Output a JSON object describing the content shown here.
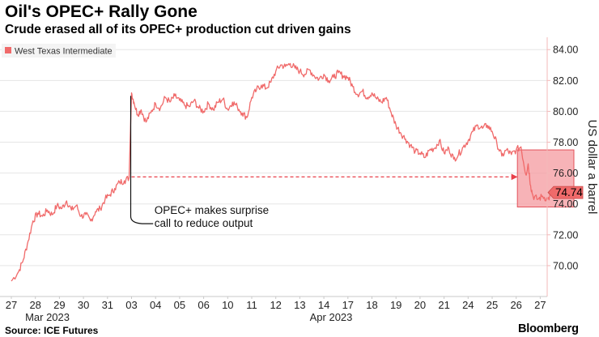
{
  "header": {
    "title": "Oil's OPEC+ Rally Gone",
    "subtitle": "Crude erased all of its OPEC+ production cut driven gains"
  },
  "footer": {
    "source": "Source: ICE Futures",
    "brand": "Bloomberg"
  },
  "colors": {
    "series": "#f06a6a",
    "box_fill": "#f5a0a5",
    "box_stroke": "#e4525b",
    "arrow": "#e8404a",
    "grid": "#e5e5e5",
    "axis": "#f3b9b9"
  },
  "chart_data": {
    "type": "line",
    "title": "Oil's OPEC+ Rally Gone",
    "subtitle": "Crude erased all of its OPEC+ production cut driven gains",
    "ylabel": "US dollar a barrel",
    "ylim": [
      68.0,
      84.8
    ],
    "yticks": [
      "70.00",
      "72.00",
      "74.00",
      "76.00",
      "78.00",
      "80.00",
      "82.00",
      "84.00"
    ],
    "ytick_values": [
      70,
      72,
      74,
      76,
      78,
      80,
      82,
      84
    ],
    "categories": [
      "27",
      "28",
      "29",
      "30",
      "31",
      "03",
      "04",
      "05",
      "06",
      "10",
      "11",
      "12",
      "13",
      "14",
      "17",
      "18",
      "19",
      "20",
      "21",
      "24",
      "25",
      "26",
      "27"
    ],
    "month_labels": [
      {
        "label": "Mar 2023",
        "at_index": 1.5
      },
      {
        "label": "Apr 2023",
        "at_index": 13.3
      }
    ],
    "legend": {
      "position": "top-left",
      "entries": [
        "West Texas Intermediate"
      ]
    },
    "grid": "horizontal",
    "last_value_label": "74.74",
    "series": [
      {
        "name": "West Texas Intermediate",
        "points": [
          [
            0.0,
            69.0
          ],
          [
            0.3,
            69.6
          ],
          [
            0.5,
            70.4
          ],
          [
            0.7,
            71.6
          ],
          [
            0.9,
            72.9
          ],
          [
            1.1,
            73.4
          ],
          [
            1.3,
            73.2
          ],
          [
            1.5,
            73.6
          ],
          [
            1.7,
            73.3
          ],
          [
            1.9,
            73.9
          ],
          [
            2.1,
            73.7
          ],
          [
            2.3,
            74.2
          ],
          [
            2.5,
            73.6
          ],
          [
            2.7,
            73.9
          ],
          [
            2.9,
            73.2
          ],
          [
            3.1,
            73.3
          ],
          [
            3.3,
            72.9
          ],
          [
            3.5,
            73.5
          ],
          [
            3.7,
            73.7
          ],
          [
            3.9,
            74.3
          ],
          [
            4.1,
            74.6
          ],
          [
            4.3,
            75.0
          ],
          [
            4.5,
            75.4
          ],
          [
            4.7,
            75.5
          ],
          [
            4.9,
            75.7
          ],
          [
            5.0,
            81.2
          ],
          [
            5.1,
            80.6
          ],
          [
            5.25,
            79.8
          ],
          [
            5.4,
            80.1
          ],
          [
            5.6,
            79.3
          ],
          [
            5.8,
            79.9
          ],
          [
            6.0,
            80.5
          ],
          [
            6.2,
            80.2
          ],
          [
            6.4,
            80.9
          ],
          [
            6.6,
            80.6
          ],
          [
            6.8,
            81.0
          ],
          [
            7.0,
            80.7
          ],
          [
            7.2,
            80.4
          ],
          [
            7.4,
            80.3
          ],
          [
            7.6,
            80.7
          ],
          [
            7.8,
            80.2
          ],
          [
            8.0,
            80.0
          ],
          [
            8.2,
            80.5
          ],
          [
            8.4,
            80.1
          ],
          [
            8.6,
            80.6
          ],
          [
            8.8,
            80.8
          ],
          [
            9.0,
            80.1
          ],
          [
            9.2,
            80.6
          ],
          [
            9.4,
            80.3
          ],
          [
            9.6,
            79.9
          ],
          [
            9.8,
            79.6
          ],
          [
            10.0,
            80.9
          ],
          [
            10.2,
            81.4
          ],
          [
            10.4,
            81.7
          ],
          [
            10.6,
            81.5
          ],
          [
            10.8,
            81.9
          ],
          [
            11.0,
            82.6
          ],
          [
            11.2,
            83.0
          ],
          [
            11.4,
            82.9
          ],
          [
            11.6,
            83.1
          ],
          [
            11.8,
            82.8
          ],
          [
            12.0,
            82.6
          ],
          [
            12.2,
            82.4
          ],
          [
            12.4,
            82.7
          ],
          [
            12.6,
            82.3
          ],
          [
            12.8,
            82.1
          ],
          [
            13.0,
            82.4
          ],
          [
            13.2,
            82.0
          ],
          [
            13.4,
            82.2
          ],
          [
            13.6,
            82.5
          ],
          [
            13.8,
            82.3
          ],
          [
            14.0,
            82.2
          ],
          [
            14.2,
            81.6
          ],
          [
            14.4,
            81.1
          ],
          [
            14.6,
            81.3
          ],
          [
            14.8,
            80.9
          ],
          [
            15.0,
            81.2
          ],
          [
            15.2,
            80.8
          ],
          [
            15.4,
            80.6
          ],
          [
            15.6,
            80.9
          ],
          [
            15.8,
            79.9
          ],
          [
            16.0,
            79.1
          ],
          [
            16.2,
            78.6
          ],
          [
            16.4,
            78.2
          ],
          [
            16.6,
            77.8
          ],
          [
            16.8,
            77.4
          ],
          [
            17.0,
            77.3
          ],
          [
            17.2,
            77.0
          ],
          [
            17.4,
            77.5
          ],
          [
            17.6,
            77.6
          ],
          [
            17.8,
            78.1
          ],
          [
            18.0,
            77.3
          ],
          [
            18.2,
            77.6
          ],
          [
            18.4,
            76.9
          ],
          [
            18.6,
            77.2
          ],
          [
            18.8,
            77.7
          ],
          [
            19.0,
            78.1
          ],
          [
            19.2,
            78.7
          ],
          [
            19.4,
            79.1
          ],
          [
            19.6,
            78.9
          ],
          [
            19.8,
            79.1
          ],
          [
            20.0,
            78.7
          ],
          [
            20.2,
            77.9
          ],
          [
            20.4,
            77.1
          ],
          [
            20.6,
            77.5
          ],
          [
            20.8,
            77.2
          ],
          [
            21.0,
            77.5
          ],
          [
            21.2,
            77.7
          ],
          [
            21.4,
            75.9
          ],
          [
            21.5,
            76.6
          ],
          [
            21.6,
            75.2
          ],
          [
            21.7,
            74.5
          ],
          [
            21.9,
            74.3
          ],
          [
            22.1,
            74.5
          ],
          [
            22.3,
            74.3
          ],
          [
            22.5,
            74.6
          ],
          [
            22.7,
            74.4
          ],
          [
            22.85,
            74.9
          ],
          [
            23.0,
            74.74
          ]
        ]
      }
    ],
    "annotations": [
      {
        "text_lines": [
          "OPEC+ makes surprise",
          "call to reduce output"
        ],
        "at_index": 5.0
      }
    ]
  }
}
